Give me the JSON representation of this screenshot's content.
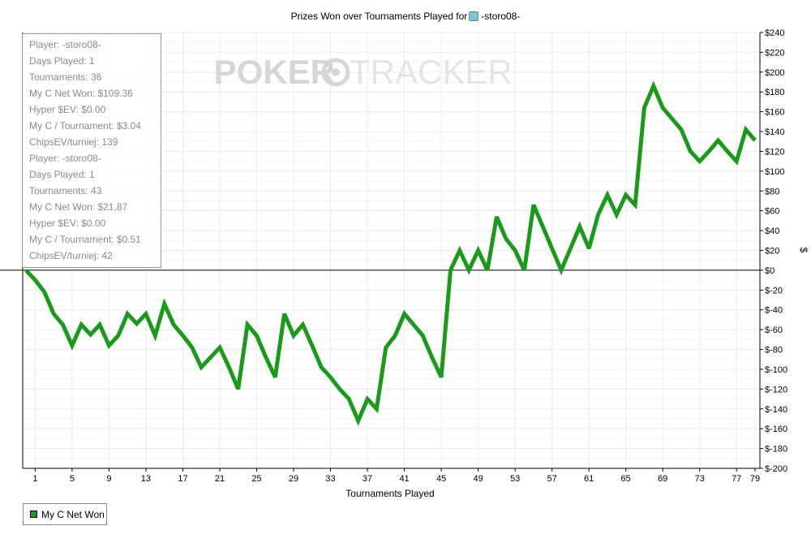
{
  "title": {
    "prefix": "Prizes Won over Tournaments Played for",
    "player": "-storo08-",
    "icon": "player-icon"
  },
  "watermark": {
    "left": "POKER",
    "right": "TRACKER"
  },
  "info_lines": [
    "Player: -storo08-",
    "Days Played: 1",
    "Tournaments: 36",
    "My C Net Won: $109.36",
    "Hyper $EV: $0.00",
    "My C / Tournament: $3.04",
    "ChipsEV/turniej: 139",
    "Player: -storo08-",
    "Days Played: 1",
    "Tournaments: 43",
    "My C Net Won: $21.87",
    "Hyper $EV: $0.00",
    "My C / Tournament: $0.51",
    "ChipsEV/turniej: 42"
  ],
  "legend": {
    "label": "My C Net Won",
    "color": "#1a9a1a"
  },
  "chart_data": {
    "type": "line",
    "title": "Prizes Won over Tournaments Played for -storo08-",
    "xlabel": "Tournaments Played",
    "ylabel": "$",
    "xlim": [
      0,
      79
    ],
    "ylim": [
      -200,
      240
    ],
    "x_ticks": [
      "1",
      "5",
      "9",
      "13",
      "17",
      "21",
      "25",
      "29",
      "33",
      "37",
      "41",
      "45",
      "49",
      "53",
      "57",
      "61",
      "65",
      "69",
      "73",
      "77",
      "79"
    ],
    "y_ticks": [
      "$240",
      "$220",
      "$200",
      "$180",
      "$160",
      "$140",
      "$120",
      "$100",
      "$80",
      "$60",
      "$40",
      "$20",
      "$0",
      "$-20",
      "$-40",
      "$-60",
      "$-80",
      "$-100",
      "$-120",
      "$-140",
      "$-160",
      "$-180",
      "$-200"
    ],
    "grid": true,
    "legend_position": "bottom-left",
    "series": [
      {
        "name": "My C Net Won",
        "color": "#1a9a1a",
        "x": [
          0,
          1,
          2,
          3,
          4,
          5,
          6,
          7,
          8,
          9,
          10,
          11,
          12,
          13,
          14,
          15,
          16,
          17,
          18,
          19,
          20,
          21,
          22,
          23,
          24,
          25,
          26,
          27,
          28,
          29,
          30,
          31,
          32,
          33,
          34,
          35,
          36,
          37,
          38,
          39,
          40,
          41,
          42,
          43,
          44,
          45,
          46,
          47,
          48,
          49,
          50,
          51,
          52,
          53,
          54,
          55,
          56,
          57,
          58,
          59,
          60,
          61,
          62,
          63,
          64,
          65,
          66,
          67,
          68,
          69,
          70,
          71,
          72,
          73,
          74,
          75,
          76,
          77,
          78,
          79
        ],
        "values": [
          0,
          -10,
          -22,
          -44,
          -55,
          -76,
          -55,
          -65,
          -55,
          -76,
          -66,
          -44,
          -54,
          -44,
          -66,
          -34,
          -55,
          -66,
          -78,
          -98,
          -88,
          -78,
          -98,
          -120,
          -55,
          -66,
          -88,
          -108,
          -44,
          -66,
          -55,
          -76,
          -98,
          -108,
          -120,
          -130,
          -152,
          -130,
          -140,
          -78,
          -66,
          -44,
          -55,
          -66,
          -88,
          -108,
          0,
          20,
          0,
          20,
          0,
          54,
          32,
          20,
          0,
          66,
          44,
          22,
          0,
          22,
          44,
          22,
          56,
          76,
          56,
          76,
          66,
          164,
          186,
          164,
          153,
          142,
          120,
          110,
          120,
          131,
          120,
          110,
          142,
          131
        ]
      }
    ]
  }
}
